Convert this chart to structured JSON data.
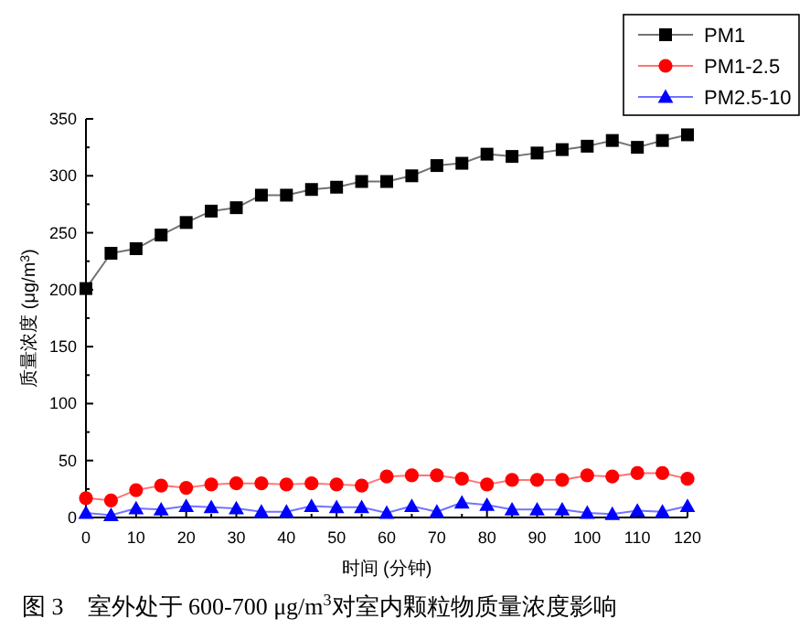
{
  "chart_data": {
    "type": "line",
    "xlabel": "时间 (分钟)",
    "ylabel": "质量浓度 (μg/m$^{3}$)",
    "annotations": [
      "图 3　室外处于 600-700 μg/m$^{3}$对室内颗粒物质量浓度影响"
    ],
    "x": [
      0,
      5,
      10,
      15,
      20,
      25,
      30,
      35,
      40,
      45,
      50,
      55,
      60,
      65,
      70,
      75,
      80,
      85,
      90,
      95,
      100,
      105,
      110,
      115,
      120
    ],
    "series": [
      {
        "name": "PM1",
        "color": "#000000",
        "marker": "square",
        "values": [
          201,
          232,
          236,
          248,
          259,
          269,
          272,
          283,
          283,
          288,
          290,
          295,
          295,
          300,
          309,
          311,
          319,
          317,
          320,
          323,
          326,
          331,
          325,
          331,
          336
        ]
      },
      {
        "name": "PM1-2.5",
        "color": "#ff0000",
        "marker": "circle",
        "values": [
          17,
          15,
          24,
          28,
          26,
          29,
          30,
          30,
          29,
          30,
          29,
          28,
          36,
          37,
          37,
          34,
          29,
          33,
          33,
          33,
          37,
          36,
          39,
          39,
          34
        ]
      },
      {
        "name": "PM2.5-10",
        "color": "#0000ff",
        "marker": "triangle",
        "values": [
          4,
          2,
          8,
          7,
          10,
          9,
          8,
          5,
          5,
          10,
          9,
          9,
          4,
          10,
          5,
          13,
          11,
          7,
          7,
          7,
          4,
          3,
          6,
          5,
          10
        ]
      }
    ],
    "xlim": [
      0,
      120
    ],
    "xticks": [
      0,
      10,
      20,
      30,
      40,
      50,
      60,
      70,
      80,
      90,
      100,
      110,
      120
    ],
    "ylim": [
      0,
      350
    ],
    "yticks": [
      0,
      50,
      100,
      150,
      200,
      250,
      300,
      350
    ],
    "legend": "top right",
    "grid": false
  }
}
